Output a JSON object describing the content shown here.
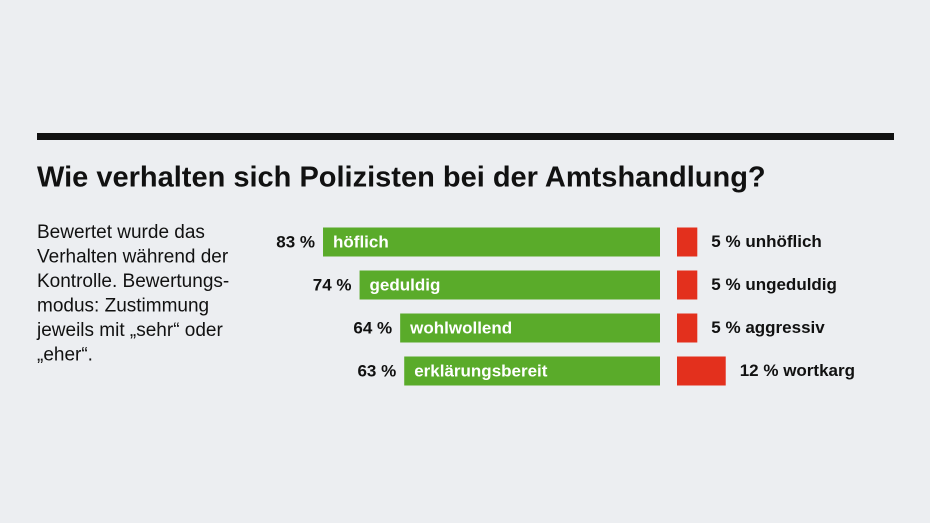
{
  "chart_data": {
    "type": "diverging-bar",
    "title": "Wie verhalten sich Polizisten bei der Amtshandlung?",
    "note_lines": [
      "Bewertet wurde das",
      "Verhalten während der",
      "Kontrolle. Bewertungs-",
      "modus: Zustimmung",
      "jeweils mit „sehr“ oder",
      "„eher“."
    ],
    "positive": {
      "color": "#5aab2a",
      "categories": [
        "höflich",
        "geduldig",
        "wohlwollend",
        "erklärungsbereit"
      ],
      "values": [
        83,
        74,
        64,
        63
      ],
      "value_labels": [
        "83 %",
        "74 %",
        "64 %",
        "63 %"
      ]
    },
    "negative": {
      "color": "#e3301d",
      "categories": [
        "unhöflich",
        "ungeduldig",
        "aggressiv",
        "wortkarg"
      ],
      "values": [
        5,
        5,
        5,
        12
      ],
      "value_labels": [
        "5 %",
        "5 %",
        "5 %",
        "12 %"
      ]
    }
  }
}
